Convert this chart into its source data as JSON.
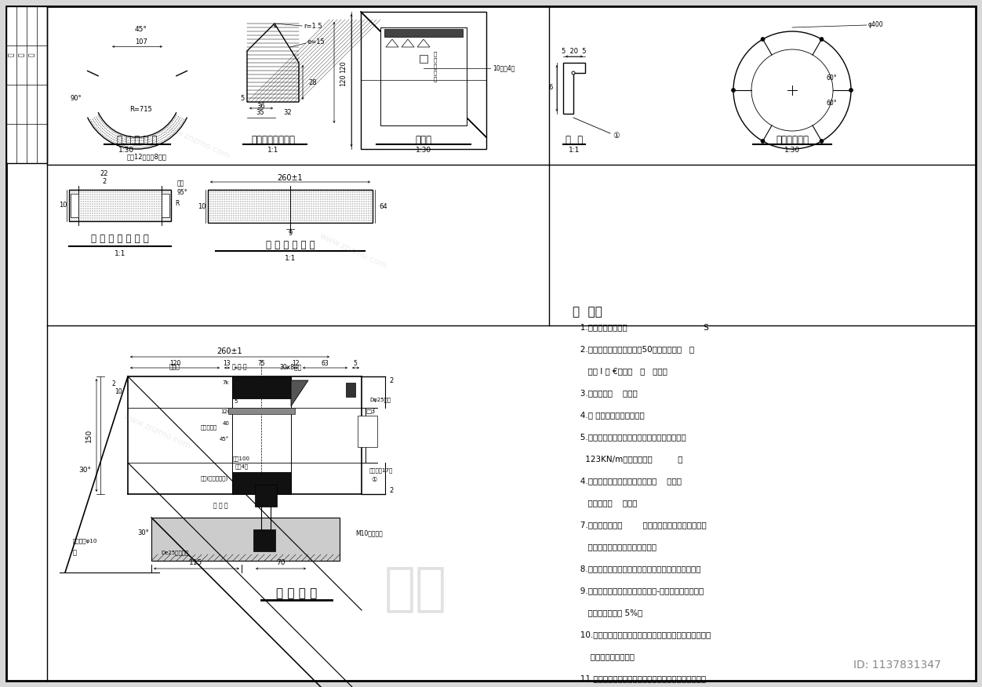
{
  "bg_color": "#d8d8d8",
  "paper_color": "#ffffff",
  "line_color": "#000000",
  "notes_title": "说  明：",
  "notes": [
    "   1.尺寸单位：毫米。                              S",
    "   2.管体材料：砼强度等级为50，抗渗等级为   ；",
    "      钢筋 Ⅰ 为 €级钢，   为   级钢。",
    "   3.砼保护层：    毫米。",
    "   4.内 外环筋呈螺旋式布置。",
    "   5.成品管出厂前应按规定进行试压，裂缝荷载为",
    "     123KN/m，破坏荷载为          。",
    "   4.管节端面与管体中轴线不垂直度    毫米，",
    "      端面不平度    毫米。",
    "   7.钢套环玻璃环为        钢，钢套环接头内侧应磨平。",
    "      内外防腐要求详施工图总说明。",
    "   8.楔型橡胶圈采用氯丁橡胶，材质要求详设计总说明。",
    "   9.垫层材料为多层胶合板，其应力-应变关系应符合试验",
    "      曲线要求，误差 5%。",
    "   10.密封胶应在安装多层胶合板衬垫时同步粘贴，待顶进压",
    "       紧后与管内壁齐平。",
    "   11.注浆孔的数量及位置可结合现场施工实际需要调整。"
  ],
  "id_text": "ID: 1137831347",
  "znzmo_text": "知末"
}
